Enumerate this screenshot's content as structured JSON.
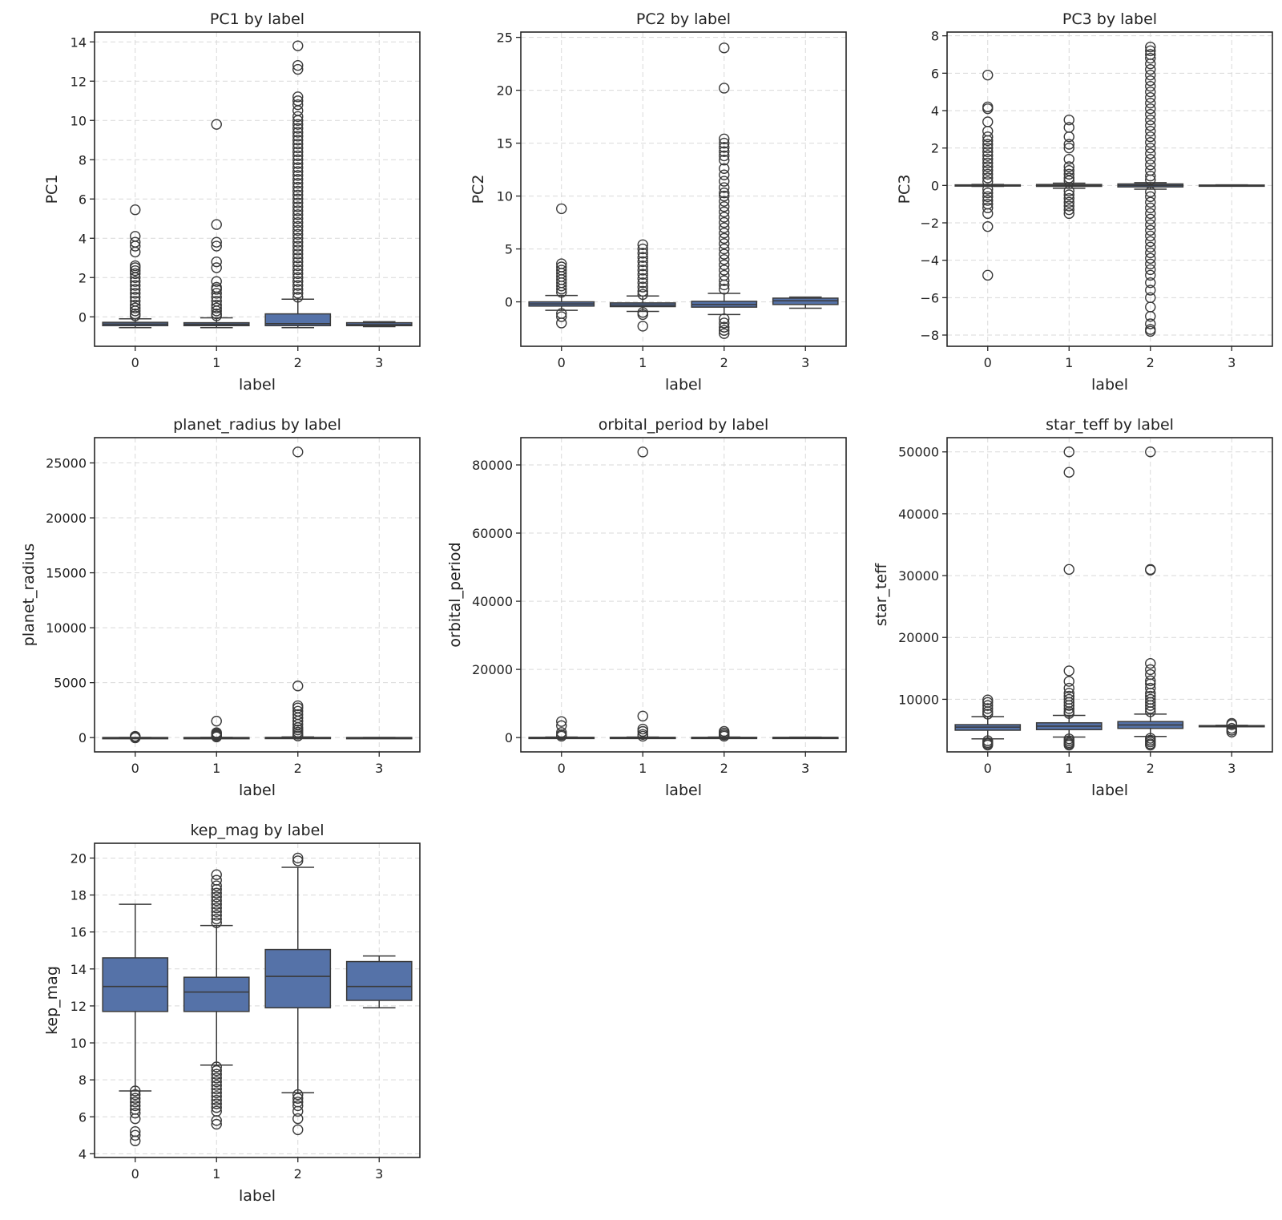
{
  "style": {
    "box_color": "#5572a8",
    "line_color": "#3a3a3a"
  },
  "chart_data": [
    {
      "type": "box",
      "title": "PC1 by label",
      "xlabel": "label",
      "ylabel": "PC1",
      "categories": [
        "0",
        "1",
        "2",
        "3"
      ],
      "ylim": [
        -1.5,
        14.5
      ],
      "yticks": [
        0,
        2,
        4,
        6,
        8,
        10,
        12,
        14
      ],
      "yticklabels": [
        "0",
        "2",
        "4",
        "6",
        "8",
        "10",
        "12",
        "14"
      ],
      "boxes": [
        {
          "q1": -0.45,
          "median": -0.37,
          "q3": -0.28,
          "whislo": -0.55,
          "whishi": -0.1,
          "fliers": [
            5.45,
            4.1,
            3.8,
            3.6,
            3.3,
            2.6,
            2.5,
            2.35,
            2.2,
            2.0,
            1.8,
            1.6,
            1.4,
            1.2,
            1.0,
            0.8,
            0.6,
            0.45,
            0.3,
            0.15,
            0.05
          ]
        },
        {
          "q1": -0.45,
          "median": -0.38,
          "q3": -0.3,
          "whislo": -0.55,
          "whishi": -0.05,
          "fliers": [
            9.8,
            4.7,
            3.8,
            3.6,
            2.8,
            2.5,
            1.8,
            1.5,
            1.4,
            1.2,
            1.0,
            0.8,
            0.6,
            0.45,
            0.3,
            0.15,
            0.05
          ]
        },
        {
          "q1": -0.45,
          "median": -0.35,
          "q3": 0.15,
          "whislo": -0.55,
          "whishi": 0.9,
          "fliers": [
            13.8,
            12.8,
            12.6,
            11.2,
            11.0,
            10.8,
            10.5,
            10.2,
            10.0,
            9.8,
            9.6,
            9.4,
            9.2,
            9.0,
            8.8,
            8.6,
            8.4,
            8.2,
            8.0,
            7.8,
            7.6,
            7.4,
            7.2,
            7.0,
            6.8,
            6.6,
            6.4,
            6.2,
            6.0,
            5.8,
            5.6,
            5.4,
            5.2,
            5.0,
            4.8,
            4.6,
            4.4,
            4.2,
            4.0,
            3.8,
            3.6,
            3.4,
            3.2,
            3.0,
            2.8,
            2.6,
            2.4,
            2.2,
            2.0,
            1.8,
            1.6,
            1.4,
            1.2,
            1.0
          ]
        },
        {
          "q1": -0.45,
          "median": -0.4,
          "q3": -0.3,
          "whislo": -0.5,
          "whishi": -0.25,
          "fliers": []
        }
      ]
    },
    {
      "type": "box",
      "title": "PC2 by label",
      "xlabel": "label",
      "ylabel": "PC2",
      "categories": [
        "0",
        "1",
        "2",
        "3"
      ],
      "ylim": [
        -4.2,
        25.5
      ],
      "yticks": [
        0,
        5,
        10,
        15,
        20,
        25
      ],
      "yticklabels": [
        "0",
        "5",
        "10",
        "15",
        "20",
        "25"
      ],
      "boxes": [
        {
          "q1": -0.4,
          "median": -0.2,
          "q3": 0.0,
          "whislo": -0.8,
          "whishi": 0.6,
          "fliers": [
            8.8,
            3.6,
            3.3,
            3.0,
            2.7,
            2.4,
            2.1,
            1.8,
            1.5,
            1.2,
            0.9,
            -1.1,
            -1.4,
            -2.0
          ]
        },
        {
          "q1": -0.45,
          "median": -0.3,
          "q3": -0.1,
          "whislo": -0.9,
          "whishi": 0.55,
          "fliers": [
            5.4,
            5.0,
            4.6,
            4.2,
            3.8,
            3.4,
            3.0,
            2.6,
            2.2,
            1.8,
            1.4,
            1.0,
            0.7,
            -1.0,
            -1.2,
            -2.3
          ]
        },
        {
          "q1": -0.5,
          "median": -0.25,
          "q3": 0.05,
          "whislo": -1.2,
          "whishi": 0.8,
          "fliers": [
            24.0,
            20.2,
            15.4,
            15.0,
            14.6,
            14.2,
            13.8,
            13.4,
            12.6,
            12.0,
            11.4,
            10.8,
            10.3,
            10.0,
            9.5,
            9.0,
            8.5,
            8.0,
            7.5,
            7.0,
            6.5,
            6.0,
            5.5,
            5.0,
            4.5,
            4.0,
            3.5,
            3.0,
            2.5,
            2.0,
            1.6,
            1.2,
            -1.6,
            -2.0,
            -2.4,
            -2.7,
            -3.0
          ]
        },
        {
          "q1": -0.25,
          "median": 0.1,
          "q3": 0.35,
          "whislo": -0.6,
          "whishi": 0.45,
          "fliers": []
        }
      ]
    },
    {
      "type": "box",
      "title": "PC3 by label",
      "xlabel": "label",
      "ylabel": "PC3",
      "categories": [
        "0",
        "1",
        "2",
        "3"
      ],
      "ylim": [
        -8.6,
        8.2
      ],
      "yticks": [
        -8,
        -6,
        -4,
        -2,
        0,
        2,
        4,
        6,
        8
      ],
      "yticklabels": [
        "−8",
        "−6",
        "−4",
        "−2",
        "0",
        "2",
        "4",
        "6",
        "8"
      ],
      "boxes": [
        {
          "q1": -0.03,
          "median": 0.0,
          "q3": 0.03,
          "whislo": -0.05,
          "whishi": 0.05,
          "fliers": [
            5.9,
            4.2,
            4.1,
            3.4,
            2.9,
            2.6,
            2.4,
            2.2,
            2.0,
            1.8,
            1.6,
            1.4,
            1.2,
            1.0,
            0.8,
            0.6,
            0.4,
            0.2,
            -0.2,
            -0.4,
            -0.6,
            -0.8,
            -1.0,
            -1.2,
            -1.5,
            -2.2,
            -4.8
          ]
        },
        {
          "q1": -0.05,
          "median": 0.0,
          "q3": 0.05,
          "whislo": -0.15,
          "whishi": 0.12,
          "fliers": [
            3.5,
            3.1,
            2.6,
            2.2,
            2.0,
            1.4,
            1.0,
            0.8,
            0.6,
            0.4,
            0.25,
            -0.3,
            -0.5,
            -0.7,
            -0.9,
            -1.1,
            -1.3,
            -1.5
          ]
        },
        {
          "q1": -0.08,
          "median": 0.0,
          "q3": 0.08,
          "whislo": -0.2,
          "whishi": 0.15,
          "fliers": [
            7.4,
            7.2,
            7.0,
            6.8,
            6.5,
            6.2,
            5.9,
            5.6,
            5.3,
            5.0,
            4.7,
            4.4,
            4.1,
            3.8,
            3.5,
            3.2,
            2.9,
            2.6,
            2.3,
            2.0,
            1.7,
            1.4,
            1.1,
            0.8,
            0.5,
            0.3,
            -0.35,
            -0.6,
            -0.9,
            -1.2,
            -1.5,
            -1.8,
            -2.1,
            -2.4,
            -2.7,
            -3.0,
            -3.3,
            -3.6,
            -3.9,
            -4.2,
            -4.5,
            -4.8,
            -5.2,
            -5.6,
            -6.0,
            -6.5,
            -7.0,
            -7.4,
            -7.7,
            -7.8
          ]
        },
        {
          "q1": -0.02,
          "median": 0.0,
          "q3": 0.02,
          "whislo": -0.03,
          "whishi": 0.03,
          "fliers": []
        }
      ]
    },
    {
      "type": "box",
      "title": "planet_radius by label",
      "xlabel": "label",
      "ylabel": "planet_radius",
      "categories": [
        "0",
        "1",
        "2",
        "3"
      ],
      "ylim": [
        -1300,
        27300
      ],
      "yticks": [
        0,
        5000,
        10000,
        15000,
        20000,
        25000
      ],
      "yticklabels": [
        "0",
        "5000",
        "10000",
        "15000",
        "20000",
        "25000"
      ],
      "boxes": [
        {
          "q1": 1,
          "median": 2,
          "q3": 3,
          "whislo": 0,
          "whishi": 6,
          "fliers": [
            120,
            60,
            20,
            -20
          ]
        },
        {
          "q1": 1,
          "median": 2,
          "q3": 4,
          "whislo": 0,
          "whishi": 10,
          "fliers": [
            1500,
            450,
            350,
            250,
            150,
            60
          ]
        },
        {
          "q1": 2,
          "median": 3,
          "q3": 15,
          "whislo": 0,
          "whishi": 60,
          "fliers": [
            26000,
            4700,
            2900,
            2700,
            2400,
            2100,
            1800,
            1500,
            1200,
            900,
            700,
            500,
            300,
            150
          ]
        },
        {
          "q1": 1,
          "median": 2,
          "q3": 3,
          "whislo": 0,
          "whishi": 4,
          "fliers": []
        }
      ]
    },
    {
      "type": "box",
      "title": "orbital_period by label",
      "xlabel": "label",
      "ylabel": "orbital_period",
      "categories": [
        "0",
        "1",
        "2",
        "3"
      ],
      "ylim": [
        -4200,
        88000
      ],
      "yticks": [
        0,
        20000,
        40000,
        60000,
        80000
      ],
      "yticklabels": [
        "0",
        "20000",
        "40000",
        "60000",
        "80000"
      ],
      "boxes": [
        {
          "q1": 5,
          "median": 15,
          "q3": 60,
          "whislo": 0,
          "whishi": 150,
          "fliers": [
            4700,
            3500,
            1500,
            800,
            400
          ]
        },
        {
          "q1": 5,
          "median": 15,
          "q3": 60,
          "whislo": 0,
          "whishi": 150,
          "fliers": [
            83800,
            6300,
            2500,
            1800,
            900,
            400
          ]
        },
        {
          "q1": 5,
          "median": 15,
          "q3": 60,
          "whislo": 0,
          "whishi": 150,
          "fliers": [
            1800,
            1300,
            800,
            400
          ]
        },
        {
          "q1": 5,
          "median": 15,
          "q3": 60,
          "whislo": 0,
          "whishi": 120,
          "fliers": []
        }
      ]
    },
    {
      "type": "box",
      "title": "star_teff by label",
      "xlabel": "label",
      "ylabel": "star_teff",
      "categories": [
        "0",
        "1",
        "2",
        "3"
      ],
      "ylim": [
        1500,
        52300
      ],
      "yticks": [
        10000,
        20000,
        30000,
        40000,
        50000
      ],
      "yticklabels": [
        "10000",
        "20000",
        "30000",
        "40000",
        "50000"
      ],
      "boxes": [
        {
          "q1": 5000,
          "median": 5500,
          "q3": 5900,
          "whislo": 3600,
          "whishi": 7200,
          "fliers": [
            9900,
            9500,
            9000,
            8500,
            8000,
            7600,
            3300,
            3000,
            2800,
            2600
          ]
        },
        {
          "q1": 5100,
          "median": 5650,
          "q3": 6200,
          "whislo": 3900,
          "whishi": 7400,
          "fliers": [
            50000,
            46700,
            31000,
            14600,
            12900,
            11800,
            11000,
            10500,
            10000,
            9500,
            9000,
            8500,
            8000,
            7700,
            3600,
            3300,
            3000,
            2800,
            2600
          ]
        },
        {
          "q1": 5300,
          "median": 5850,
          "q3": 6400,
          "whislo": 4000,
          "whishi": 7600,
          "fliers": [
            50000,
            31000,
            30900,
            15800,
            14800,
            14000,
            13000,
            12500,
            11800,
            11000,
            10500,
            10000,
            9500,
            9000,
            8500,
            8000,
            3700,
            3400,
            3100,
            2800,
            2600
          ]
        },
        {
          "q1": 5650,
          "median": 5700,
          "q3": 5750,
          "whislo": 5600,
          "whishi": 5800,
          "fliers": [
            6100,
            5900,
            5300,
            5000,
            4700
          ]
        }
      ]
    },
    {
      "type": "box",
      "title": "kep_mag by label",
      "xlabel": "label",
      "ylabel": "kep_mag",
      "categories": [
        "0",
        "1",
        "2",
        "3"
      ],
      "ylim": [
        3.8,
        20.8
      ],
      "yticks": [
        4,
        6,
        8,
        10,
        12,
        14,
        16,
        18,
        20
      ],
      "yticklabels": [
        "4",
        "6",
        "8",
        "10",
        "12",
        "14",
        "16",
        "18",
        "20"
      ],
      "boxes": [
        {
          "q1": 11.7,
          "median": 13.05,
          "q3": 14.6,
          "whislo": 7.4,
          "whishi": 17.5,
          "fliers": [
            7.4,
            7.2,
            7.0,
            6.8,
            6.6,
            6.4,
            6.2,
            5.9,
            5.2,
            5.0,
            4.7
          ]
        },
        {
          "q1": 11.7,
          "median": 12.75,
          "q3": 13.55,
          "whislo": 8.8,
          "whishi": 16.35,
          "fliers": [
            19.1,
            18.8,
            18.5,
            18.3,
            18.1,
            17.9,
            17.7,
            17.5,
            17.3,
            17.1,
            16.9,
            16.7,
            16.5,
            8.7,
            8.5,
            8.3,
            8.1,
            7.9,
            7.7,
            7.5,
            7.3,
            7.1,
            6.9,
            6.7,
            6.5,
            6.3,
            5.8,
            5.6
          ]
        },
        {
          "q1": 11.9,
          "median": 13.6,
          "q3": 15.05,
          "whislo": 7.3,
          "whishi": 19.5,
          "fliers": [
            20.0,
            19.85,
            7.2,
            7.0,
            6.8,
            6.6,
            6.3,
            5.9,
            5.3
          ]
        },
        {
          "q1": 12.3,
          "median": 13.05,
          "q3": 14.4,
          "whislo": 11.9,
          "whishi": 14.7,
          "fliers": []
        }
      ]
    }
  ]
}
